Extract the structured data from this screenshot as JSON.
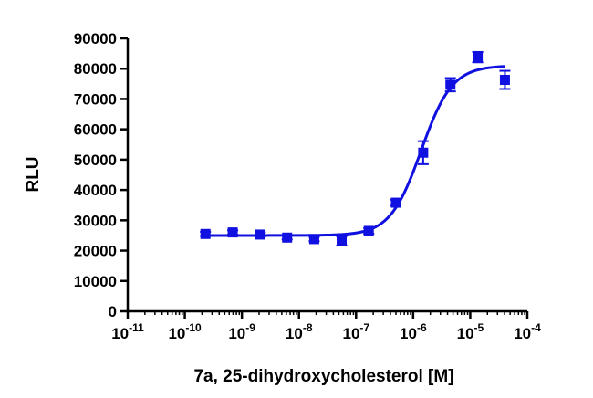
{
  "chart_data": {
    "type": "scatter",
    "title": "",
    "xlabel": "7a, 25-dihydroxycholesterol [M]",
    "ylabel": "RLU",
    "x_scale": "log",
    "xlim": [
      1e-11,
      0.0001
    ],
    "ylim": [
      0,
      90000
    ],
    "x_ticks": [
      {
        "value": 1e-11,
        "base": "10",
        "exp": "-11"
      },
      {
        "value": 1e-10,
        "base": "10",
        "exp": "-10"
      },
      {
        "value": 1e-09,
        "base": "10",
        "exp": "-9"
      },
      {
        "value": 1e-08,
        "base": "10",
        "exp": "-8"
      },
      {
        "value": 1e-07,
        "base": "10",
        "exp": "-7"
      },
      {
        "value": 1e-06,
        "base": "10",
        "exp": "-6"
      },
      {
        "value": 1e-05,
        "base": "10",
        "exp": "-5"
      },
      {
        "value": 0.0001,
        "base": "10",
        "exp": "-4"
      }
    ],
    "y_ticks": [
      {
        "value": 0,
        "label": "0"
      },
      {
        "value": 10000,
        "label": "10000"
      },
      {
        "value": 20000,
        "label": "20000"
      },
      {
        "value": 30000,
        "label": "30000"
      },
      {
        "value": 40000,
        "label": "40000"
      },
      {
        "value": 50000,
        "label": "50000"
      },
      {
        "value": 60000,
        "label": "60000"
      },
      {
        "value": 70000,
        "label": "70000"
      },
      {
        "value": 80000,
        "label": "80000"
      },
      {
        "value": 90000,
        "label": "90000"
      }
    ],
    "grid": false,
    "legend": "none",
    "color": "#1010e0",
    "marker": "square",
    "points": [
      {
        "x": 2.3e-10,
        "y": 25500,
        "err": 700
      },
      {
        "x": 6.9e-10,
        "y": 26000,
        "err": 700
      },
      {
        "x": 2.1e-09,
        "y": 25300,
        "err": 700
      },
      {
        "x": 6.2e-09,
        "y": 24300,
        "err": 600
      },
      {
        "x": 1.85e-08,
        "y": 23800,
        "err": 700
      },
      {
        "x": 5.6e-08,
        "y": 23200,
        "err": 1500
      },
      {
        "x": 1.67e-07,
        "y": 26500,
        "err": 900
      },
      {
        "x": 5e-07,
        "y": 35800,
        "err": 1000
      },
      {
        "x": 1.5e-06,
        "y": 52300,
        "err": 3800
      },
      {
        "x": 4.5e-06,
        "y": 74700,
        "err": 2200
      },
      {
        "x": 1.35e-05,
        "y": 83800,
        "err": 1700
      },
      {
        "x": 4.05e-05,
        "y": 76300,
        "err": 3000
      }
    ],
    "fit": {
      "model": "four-parameter logistic",
      "bottom": 25000,
      "top": 81000,
      "log_ec50": -5.86,
      "hill_slope": 1.6
    }
  }
}
